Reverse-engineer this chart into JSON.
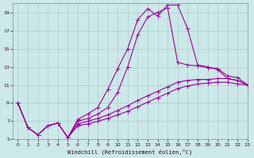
{
  "xlabel": "Windchill (Refroidissement éolien,°C)",
  "bg_color": "#cce8e8",
  "line_color": "#990099",
  "grid_color": "#aacccc",
  "xlim": [
    -0.5,
    23
  ],
  "ylim": [
    5,
    20
  ],
  "xticks": [
    0,
    1,
    2,
    3,
    4,
    5,
    6,
    7,
    8,
    9,
    10,
    11,
    12,
    13,
    14,
    15,
    16,
    17,
    18,
    19,
    20,
    21,
    22,
    23
  ],
  "yticks": [
    5,
    7,
    9,
    11,
    13,
    15,
    17,
    19
  ],
  "line1_y": [
    9.0,
    6.3,
    5.5,
    6.5,
    6.8,
    5.2,
    7.2,
    7.8,
    8.5,
    10.5,
    12.8,
    15.0,
    18.2,
    19.4,
    18.6,
    19.8,
    19.8,
    17.2,
    13.2,
    13.0,
    12.7,
    11.7,
    11.5,
    11.0
  ],
  "line2_y": [
    9.0,
    6.3,
    5.5,
    6.5,
    6.8,
    5.2,
    7.0,
    7.3,
    7.8,
    8.5,
    10.2,
    13.0,
    16.5,
    18.5,
    19.0,
    19.5,
    13.5,
    13.2,
    13.1,
    12.9,
    12.8,
    12.0,
    11.8,
    11.0
  ],
  "line3_y": [
    9.0,
    6.3,
    5.5,
    6.5,
    6.8,
    5.2,
    6.7,
    7.0,
    7.3,
    7.7,
    8.2,
    8.7,
    9.3,
    9.8,
    10.3,
    10.8,
    11.3,
    11.5,
    11.6,
    11.6,
    11.7,
    11.7,
    11.5,
    11.0
  ],
  "line4_y": [
    9.0,
    6.3,
    5.5,
    6.5,
    6.8,
    5.2,
    6.5,
    6.7,
    7.0,
    7.3,
    7.7,
    8.1,
    8.6,
    9.1,
    9.6,
    10.1,
    10.6,
    10.9,
    11.1,
    11.2,
    11.3,
    11.3,
    11.1,
    11.0
  ]
}
